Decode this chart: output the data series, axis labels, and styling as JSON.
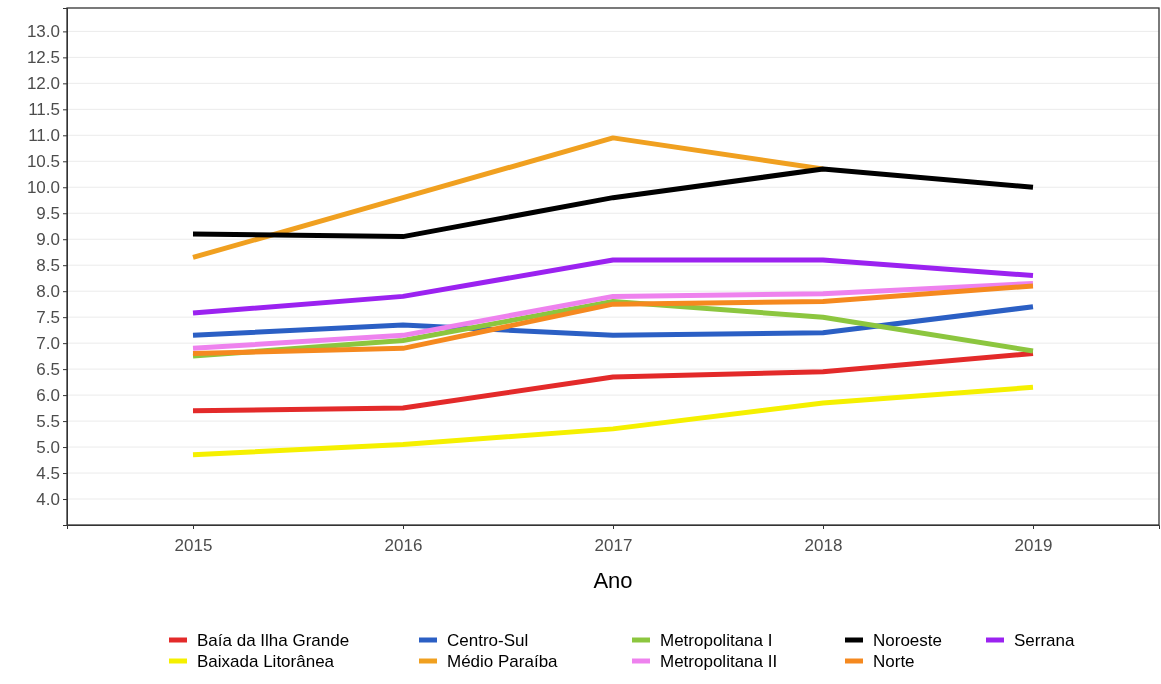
{
  "chart_data": {
    "type": "line",
    "xlabel": "Ano",
    "x": [
      2015,
      2016,
      2017,
      2018,
      2019
    ],
    "xlim": [
      2014.4,
      2019.6
    ],
    "xticks": [
      2015,
      2016,
      2017,
      2018,
      2019
    ],
    "ylim": [
      3.5,
      13.45
    ],
    "yticks": [
      {
        "value": 4,
        "label": "4.0"
      },
      4.5,
      {
        "value": 5,
        "label": "5.0"
      },
      5.5,
      {
        "value": 6,
        "label": "6.0"
      },
      6.5,
      {
        "value": 7,
        "label": "7.0"
      },
      7.5,
      {
        "value": 8,
        "label": "8.0"
      },
      8.5,
      {
        "value": 9,
        "label": "9.0"
      },
      9.5,
      {
        "value": 10,
        "label": "10.0"
      },
      10.5,
      {
        "value": 11,
        "label": "11.0"
      },
      11.5,
      {
        "value": 12,
        "label": "12.0"
      },
      12.5,
      {
        "value": 13,
        "label": "13.0"
      }
    ],
    "grid": "y",
    "legend": "bottom",
    "line_style": "solid",
    "marker": "none",
    "series": [
      {
        "name": "Baía da Ilha Grande",
        "color": "#e32a2a",
        "values": [
          5.7,
          5.75,
          6.35,
          6.45,
          6.8
        ]
      },
      {
        "name": "Baixada Litorânea",
        "color": "#f5f000",
        "values": [
          4.85,
          5.05,
          5.35,
          5.85,
          6.15
        ]
      },
      {
        "name": "Centro-Sul",
        "color": "#2b5fc4",
        "values": [
          7.15,
          7.35,
          7.15,
          7.2,
          7.7
        ]
      },
      {
        "name": "Médio Paraíba",
        "color": "#f0a020",
        "values": [
          8.65,
          9.8,
          10.95,
          10.35,
          null
        ]
      },
      {
        "name": "Metropolitana I",
        "color": "#8cc63f",
        "values": [
          6.75,
          7.05,
          7.8,
          7.5,
          6.85
        ]
      },
      {
        "name": "Metropolitana II",
        "color": "#ee82ee",
        "values": [
          6.9,
          7.15,
          7.9,
          7.95,
          8.15
        ]
      },
      {
        "name": "Noroeste",
        "color": "#000000",
        "values": [
          9.1,
          9.05,
          9.8,
          10.35,
          10.0
        ]
      },
      {
        "name": "Norte",
        "color": "#f5891f",
        "values": [
          6.8,
          6.9,
          7.75,
          7.8,
          8.1
        ]
      },
      {
        "name": "Serrana",
        "color": "#9b22f0",
        "values": [
          7.58,
          7.9,
          8.6,
          8.6,
          8.3
        ]
      }
    ]
  }
}
